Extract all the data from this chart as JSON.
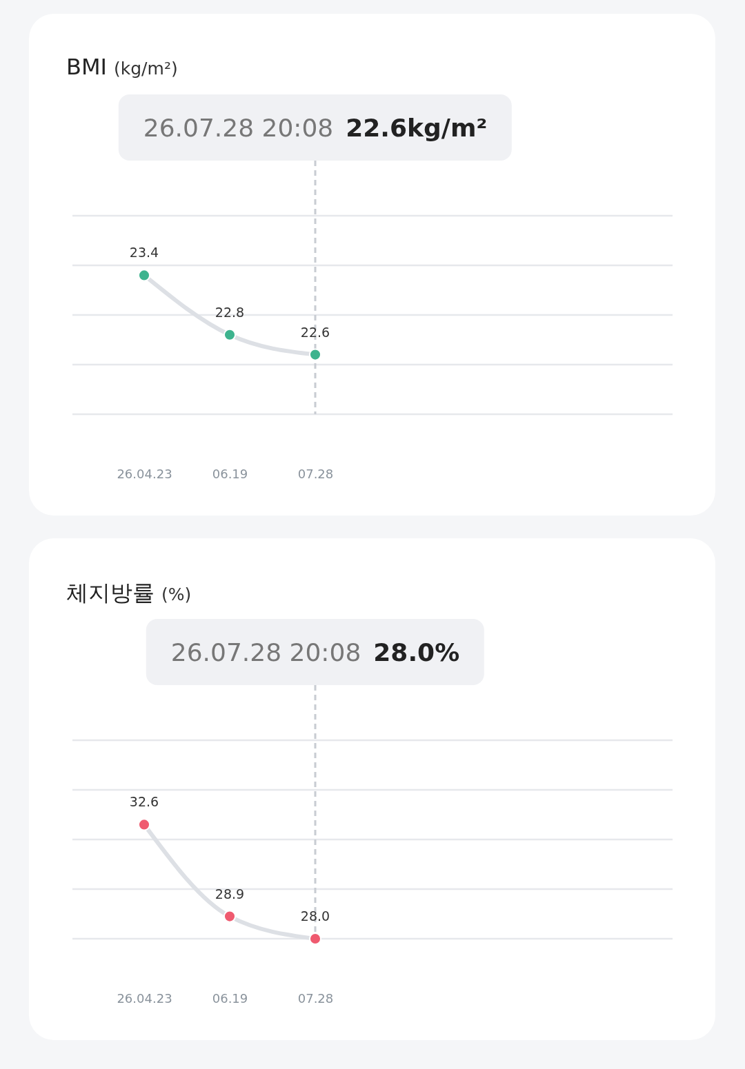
{
  "chart_data": [
    {
      "type": "line",
      "title": "BMI",
      "subtitle": "(kg/m²)",
      "categories": [
        "26.04.23",
        "06.19",
        "07.28"
      ],
      "series": [
        {
          "color": "#3db38e",
          "values": [
            23.4,
            22.8,
            22.6
          ],
          "value_labels": [
            "23.4",
            "22.8",
            "22.6"
          ]
        }
      ],
      "ylim": [
        22,
        24
      ],
      "yticks": [
        {
          "value": 22,
          "label": null
        },
        {
          "value": 22.5,
          "label": null
        },
        {
          "value": 23,
          "label": null
        },
        {
          "value": 23.5,
          "label": null
        },
        {
          "value": 24,
          "label": null
        }
      ],
      "grid": "y",
      "tick_labels": "x",
      "marker": "circle",
      "ref_lines": [
        {
          "axis": "x",
          "value": "07.28",
          "color": "#c8ccd2",
          "line_style": "dashed"
        }
      ],
      "annotations": [
        "26.07.28 20:08",
        "22.6kg/m²"
      ]
    },
    {
      "type": "line",
      "title": "체지방률",
      "subtitle": "(%)",
      "categories": [
        "26.04.23",
        "06.19",
        "07.28"
      ],
      "series": [
        {
          "color": "#ef5a6f",
          "values": [
            32.6,
            28.9,
            28.0
          ],
          "value_labels": [
            "32.6",
            "28.9",
            "28.0"
          ]
        }
      ],
      "ylim": [
        28,
        36
      ],
      "yticks": [
        {
          "value": 28,
          "label": null
        },
        {
          "value": 30,
          "label": null
        },
        {
          "value": 32,
          "label": null
        },
        {
          "value": 34,
          "label": null
        },
        {
          "value": 36,
          "label": null
        }
      ],
      "grid": "y",
      "tick_labels": "x",
      "marker": "circle",
      "ref_lines": [
        {
          "axis": "x",
          "value": "07.28",
          "color": "#c8ccd2",
          "line_style": "dashed"
        }
      ],
      "annotations": [
        "26.07.28 20:08",
        "28.0%"
      ]
    }
  ]
}
